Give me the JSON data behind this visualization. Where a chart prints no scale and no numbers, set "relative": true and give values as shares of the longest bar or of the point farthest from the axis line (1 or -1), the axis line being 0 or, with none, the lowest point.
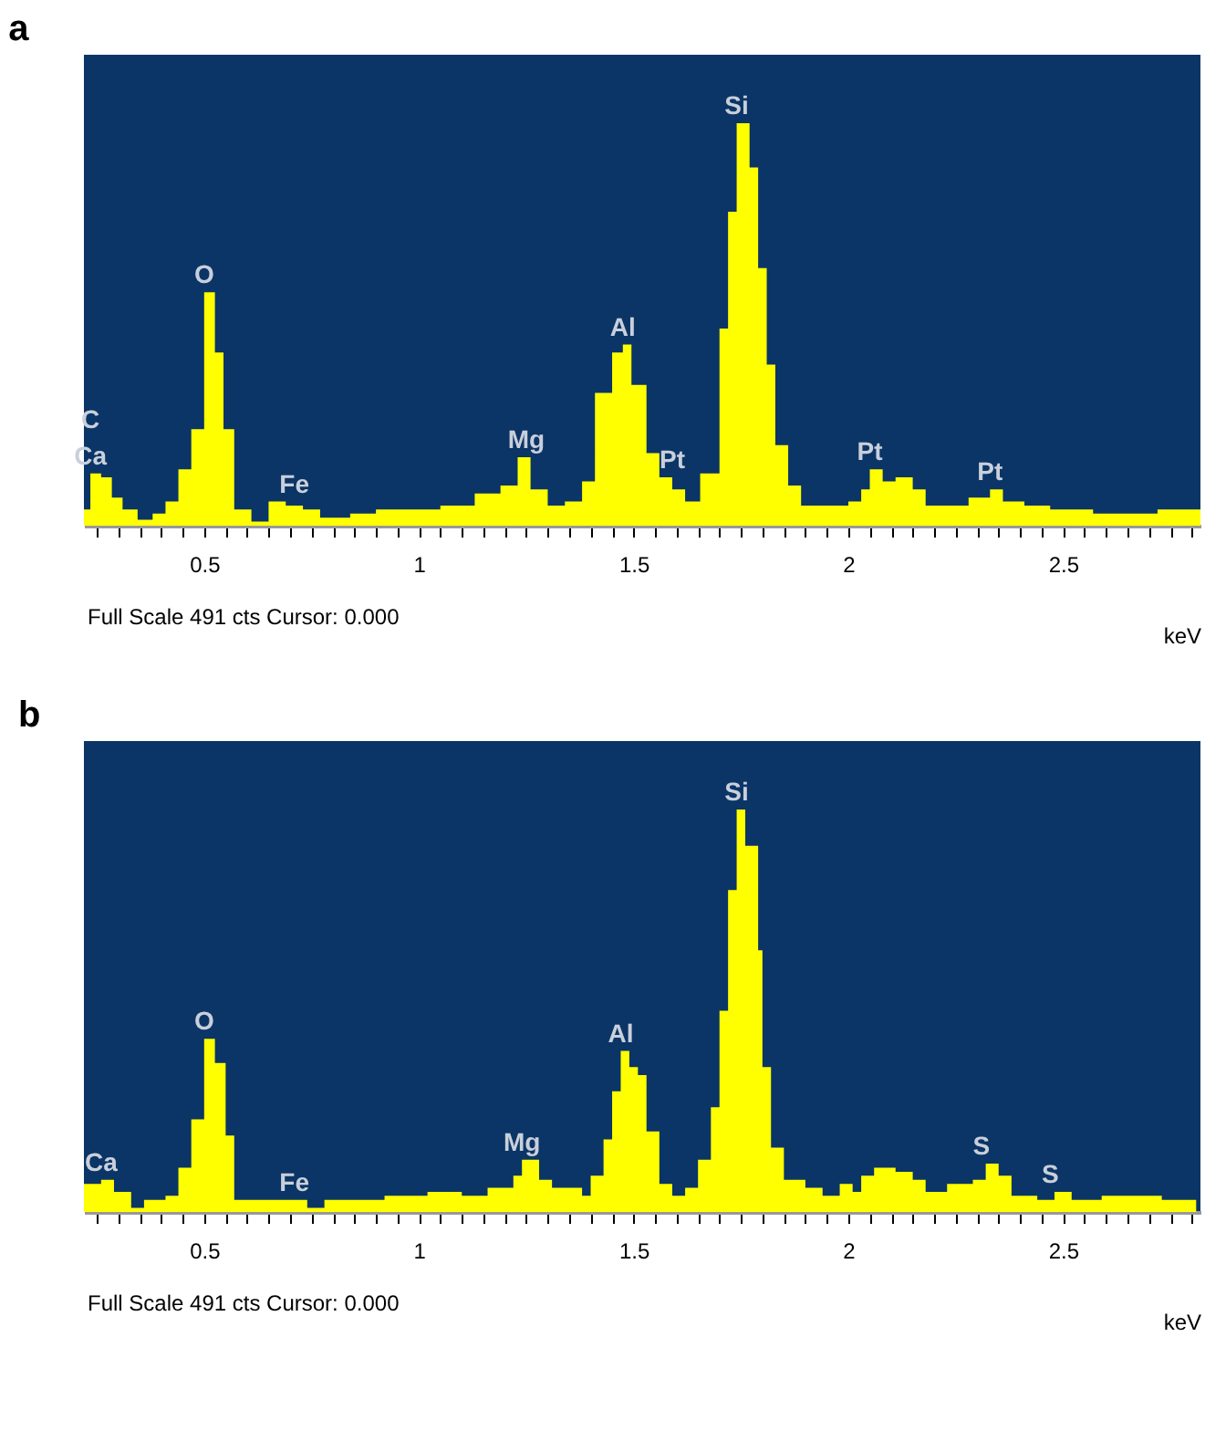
{
  "chart_data": [
    {
      "type": "area",
      "title": "a",
      "xlabel": "keV",
      "relative": true,
      "color": "#ffff00",
      "xlim": [
        0.22,
        2.82
      ],
      "xticks": [
        {
          "value": 0.25,
          "label": null
        },
        {
          "value": 0.3,
          "label": null
        },
        {
          "value": 0.35,
          "label": null
        },
        {
          "value": 0.4,
          "label": null
        },
        {
          "value": 0.45,
          "label": null
        },
        0.5,
        {
          "value": 0.55,
          "label": null
        },
        {
          "value": 0.6,
          "label": null
        },
        {
          "value": 0.65,
          "label": null
        },
        {
          "value": 0.7,
          "label": null
        },
        {
          "value": 0.75,
          "label": null
        },
        {
          "value": 0.8,
          "label": null
        },
        {
          "value": 0.85,
          "label": null
        },
        {
          "value": 0.9,
          "label": null
        },
        {
          "value": 0.95,
          "label": null
        },
        1,
        {
          "value": 1.05,
          "label": null
        },
        {
          "value": 1.1,
          "label": null
        },
        {
          "value": 1.15,
          "label": null
        },
        {
          "value": 1.2,
          "label": null
        },
        {
          "value": 1.25,
          "label": null
        },
        {
          "value": 1.3,
          "label": null
        },
        {
          "value": 1.35,
          "label": null
        },
        {
          "value": 1.4,
          "label": null
        },
        {
          "value": 1.45,
          "label": null
        },
        1.5,
        {
          "value": 1.55,
          "label": null
        },
        {
          "value": 1.6,
          "label": null
        },
        {
          "value": 1.65,
          "label": null
        },
        {
          "value": 1.7,
          "label": null
        },
        {
          "value": 1.75,
          "label": null
        },
        {
          "value": 1.8,
          "label": null
        },
        {
          "value": 1.85,
          "label": null
        },
        {
          "value": 1.9,
          "label": null
        },
        {
          "value": 1.95,
          "label": null
        },
        2,
        {
          "value": 2.05,
          "label": null
        },
        {
          "value": 2.1,
          "label": null
        },
        {
          "value": 2.15,
          "label": null
        },
        {
          "value": 2.2,
          "label": null
        },
        {
          "value": 2.25,
          "label": null
        },
        {
          "value": 2.3,
          "label": null
        },
        {
          "value": 2.35,
          "label": null
        },
        {
          "value": 2.4,
          "label": null
        },
        {
          "value": 2.45,
          "label": null
        },
        2.5,
        {
          "value": 2.55,
          "label": null
        },
        {
          "value": 2.6,
          "label": null
        },
        {
          "value": 2.65,
          "label": null
        },
        {
          "value": 2.7,
          "label": null
        },
        {
          "value": 2.75,
          "label": null
        },
        {
          "value": 2.8,
          "label": null
        }
      ],
      "x": [
        0.22,
        0.235,
        0.26,
        0.285,
        0.31,
        0.345,
        0.38,
        0.41,
        0.44,
        0.47,
        0.5,
        0.525,
        0.545,
        0.57,
        0.61,
        0.65,
        0.69,
        0.73,
        0.77,
        0.84,
        0.9,
        0.98,
        1.05,
        1.13,
        1.19,
        1.23,
        1.26,
        1.3,
        1.34,
        1.38,
        1.41,
        1.45,
        1.475,
        1.495,
        1.503,
        1.53,
        1.56,
        1.59,
        1.62,
        1.655,
        1.7,
        1.72,
        1.74,
        1.77,
        1.79,
        1.81,
        1.83,
        1.86,
        1.89,
        1.96,
        2.0,
        2.03,
        2.05,
        2.08,
        2.11,
        2.15,
        2.18,
        2.25,
        2.28,
        2.33,
        2.36,
        2.41,
        2.47,
        2.57,
        2.65,
        2.72,
        2.82
      ],
      "values": [
        0.04,
        0.13,
        0.12,
        0.07,
        0.04,
        0.015,
        0.03,
        0.06,
        0.14,
        0.24,
        0.58,
        0.43,
        0.24,
        0.04,
        0.01,
        0.06,
        0.05,
        0.04,
        0.02,
        0.03,
        0.04,
        0.04,
        0.05,
        0.08,
        0.1,
        0.17,
        0.09,
        0.05,
        0.06,
        0.11,
        0.33,
        0.43,
        0.45,
        0.35,
        0.35,
        0.18,
        0.12,
        0.09,
        0.06,
        0.13,
        0.49,
        0.78,
        1.0,
        0.89,
        0.64,
        0.4,
        0.2,
        0.1,
        0.05,
        0.05,
        0.06,
        0.09,
        0.14,
        0.11,
        0.12,
        0.09,
        0.05,
        0.05,
        0.07,
        0.09,
        0.06,
        0.05,
        0.04,
        0.03,
        0.03,
        0.04,
        0.03
      ],
      "annotations": [
        {
          "text": "Ca",
          "x": 0.235,
          "y": 0.13
        },
        {
          "text": "C",
          "x": 0.235,
          "y": 0.13
        },
        {
          "text": "O",
          "x": 0.5,
          "y": 0.58
        },
        {
          "text": "Fe",
          "x": 0.71,
          "y": 0.06
        },
        {
          "text": "Mg",
          "x": 1.25,
          "y": 0.17
        },
        {
          "text": "Al",
          "x": 1.475,
          "y": 0.45
        },
        {
          "text": "Pt",
          "x": 1.59,
          "y": 0.12
        },
        {
          "text": "Si",
          "x": 1.74,
          "y": 1.0
        },
        {
          "text": "Pt",
          "x": 2.05,
          "y": 0.14
        },
        {
          "text": "Pt",
          "x": 2.33,
          "y": 0.09
        },
        "Full Scale 491 cts Cursor: 0.000"
      ]
    },
    {
      "type": "area",
      "title": "b",
      "xlabel": "keV",
      "relative": true,
      "color": "#ffff00",
      "xlim": [
        0.22,
        2.82
      ],
      "xticks": [
        {
          "value": 0.25,
          "label": null
        },
        {
          "value": 0.3,
          "label": null
        },
        {
          "value": 0.35,
          "label": null
        },
        {
          "value": 0.4,
          "label": null
        },
        {
          "value": 0.45,
          "label": null
        },
        0.5,
        {
          "value": 0.55,
          "label": null
        },
        {
          "value": 0.6,
          "label": null
        },
        {
          "value": 0.65,
          "label": null
        },
        {
          "value": 0.7,
          "label": null
        },
        {
          "value": 0.75,
          "label": null
        },
        {
          "value": 0.8,
          "label": null
        },
        {
          "value": 0.85,
          "label": null
        },
        {
          "value": 0.9,
          "label": null
        },
        {
          "value": 0.95,
          "label": null
        },
        1,
        {
          "value": 1.05,
          "label": null
        },
        {
          "value": 1.1,
          "label": null
        },
        {
          "value": 1.15,
          "label": null
        },
        {
          "value": 1.2,
          "label": null
        },
        {
          "value": 1.25,
          "label": null
        },
        {
          "value": 1.3,
          "label": null
        },
        {
          "value": 1.35,
          "label": null
        },
        {
          "value": 1.4,
          "label": null
        },
        {
          "value": 1.45,
          "label": null
        },
        1.5,
        {
          "value": 1.55,
          "label": null
        },
        {
          "value": 1.6,
          "label": null
        },
        {
          "value": 1.65,
          "label": null
        },
        {
          "value": 1.7,
          "label": null
        },
        {
          "value": 1.75,
          "label": null
        },
        {
          "value": 1.8,
          "label": null
        },
        {
          "value": 1.85,
          "label": null
        },
        {
          "value": 1.9,
          "label": null
        },
        {
          "value": 1.95,
          "label": null
        },
        2,
        {
          "value": 2.05,
          "label": null
        },
        {
          "value": 2.1,
          "label": null
        },
        {
          "value": 2.15,
          "label": null
        },
        {
          "value": 2.2,
          "label": null
        },
        {
          "value": 2.25,
          "label": null
        },
        {
          "value": 2.3,
          "label": null
        },
        {
          "value": 2.35,
          "label": null
        },
        {
          "value": 2.4,
          "label": null
        },
        {
          "value": 2.45,
          "label": null
        },
        2.5,
        {
          "value": 2.55,
          "label": null
        },
        {
          "value": 2.6,
          "label": null
        },
        {
          "value": 2.65,
          "label": null
        },
        {
          "value": 2.7,
          "label": null
        },
        {
          "value": 2.75,
          "label": null
        },
        {
          "value": 2.8,
          "label": null
        }
      ],
      "x": [
        0.22,
        0.26,
        0.29,
        0.33,
        0.36,
        0.41,
        0.44,
        0.47,
        0.5,
        0.525,
        0.55,
        0.57,
        0.64,
        0.68,
        0.74,
        0.78,
        0.85,
        0.92,
        1.02,
        1.1,
        1.16,
        1.22,
        1.24,
        1.28,
        1.31,
        1.38,
        1.4,
        1.43,
        1.45,
        1.47,
        1.49,
        1.51,
        1.53,
        1.56,
        1.59,
        1.62,
        1.65,
        1.68,
        1.7,
        1.72,
        1.74,
        1.76,
        1.79,
        1.8,
        1.82,
        1.85,
        1.9,
        1.94,
        1.98,
        2.01,
        2.03,
        2.06,
        2.11,
        2.15,
        2.18,
        2.23,
        2.29,
        2.32,
        2.35,
        2.38,
        2.44,
        2.48,
        2.52,
        2.59,
        2.68,
        2.73,
        2.81
      ],
      "values": [
        0.07,
        0.08,
        0.05,
        0.01,
        0.03,
        0.04,
        0.11,
        0.23,
        0.43,
        0.37,
        0.19,
        0.03,
        0.03,
        0.03,
        0.01,
        0.03,
        0.03,
        0.04,
        0.05,
        0.04,
        0.06,
        0.09,
        0.13,
        0.08,
        0.06,
        0.04,
        0.09,
        0.18,
        0.3,
        0.4,
        0.36,
        0.34,
        0.2,
        0.07,
        0.04,
        0.06,
        0.13,
        0.26,
        0.5,
        0.8,
        1.0,
        0.91,
        0.65,
        0.36,
        0.16,
        0.08,
        0.06,
        0.04,
        0.07,
        0.05,
        0.09,
        0.11,
        0.1,
        0.08,
        0.05,
        0.07,
        0.08,
        0.12,
        0.09,
        0.04,
        0.03,
        0.05,
        0.03,
        0.04,
        0.04,
        0.03,
        0.03
      ],
      "annotations": [
        {
          "text": "Ca",
          "x": 0.26,
          "y": 0.08
        },
        {
          "text": "O",
          "x": 0.5,
          "y": 0.43
        },
        {
          "text": "Fe",
          "x": 0.71,
          "y": 0.03
        },
        {
          "text": "Mg",
          "x": 1.24,
          "y": 0.13
        },
        {
          "text": "Al",
          "x": 1.47,
          "y": 0.4
        },
        {
          "text": "Si",
          "x": 1.74,
          "y": 1.0
        },
        {
          "text": "S",
          "x": 2.31,
          "y": 0.12
        },
        {
          "text": "S",
          "x": 2.47,
          "y": 0.05
        },
        "Full Scale 491 cts Cursor: 0.000"
      ]
    }
  ]
}
